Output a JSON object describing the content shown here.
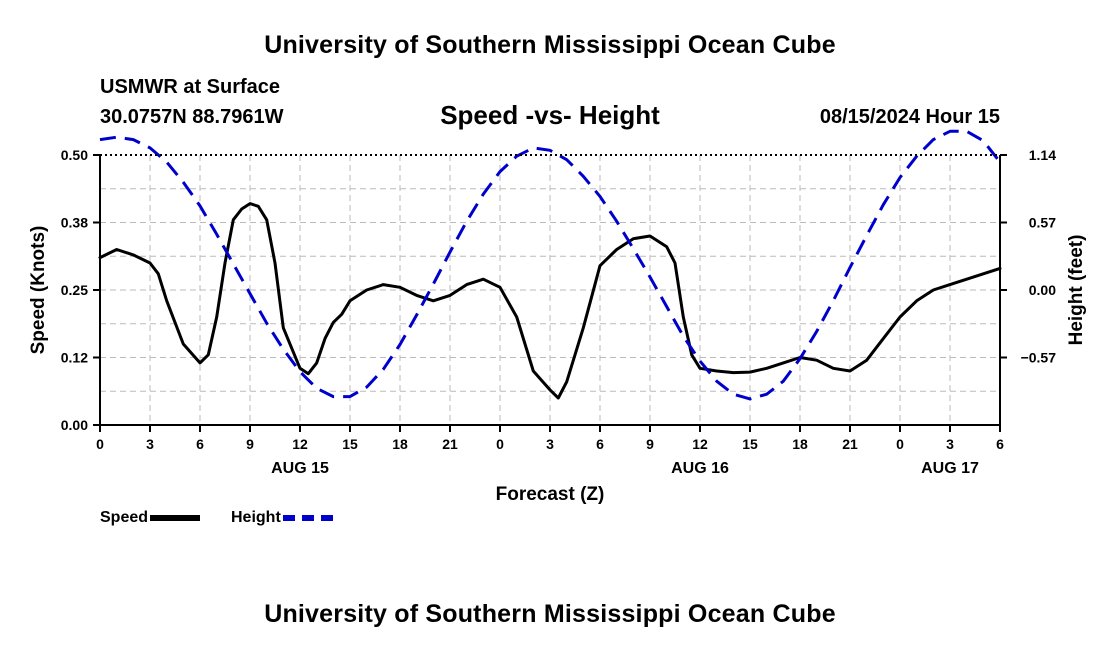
{
  "header": {
    "top_title": "University of Southern Mississippi Ocean Cube",
    "bottom_title": "University of Southern Mississippi Ocean Cube",
    "station": "USMWR at Surface",
    "coords": "30.0757N  88.7961W",
    "subtitle": "Speed -vs- Height",
    "datetime": "08/15/2024 Hour 15"
  },
  "legend": {
    "speed_label": "Speed",
    "height_label": "Height"
  },
  "colors": {
    "speed": "#000000",
    "height": "#0000cc",
    "grid": "#bbbbbb"
  },
  "chart_data": {
    "type": "line",
    "title": "Speed -vs- Height",
    "xlabel": "Forecast (Z)",
    "ylabel": "Speed (Knots)",
    "y2label": "Height (feet)",
    "xlim": [
      0,
      54
    ],
    "ylim": [
      0,
      0.5
    ],
    "y2lim": [
      -1.14,
      1.14
    ],
    "x_ticks": [
      0,
      3,
      6,
      9,
      12,
      15,
      18,
      21,
      24,
      27,
      30,
      33,
      36,
      39,
      42,
      45,
      48,
      51,
      54
    ],
    "x_tick_labels": [
      "0",
      "3",
      "6",
      "9",
      "12",
      "15",
      "18",
      "21",
      "0",
      "3",
      "6",
      "9",
      "12",
      "15",
      "18",
      "21",
      "0",
      "3",
      "6"
    ],
    "date_labels": [
      {
        "x": 12,
        "label": "AUG 15"
      },
      {
        "x": 36,
        "label": "AUG 16"
      },
      {
        "x": 51,
        "label": "AUG 17"
      }
    ],
    "y_ticks": [
      0,
      0.125,
      0.25,
      0.375,
      0.5
    ],
    "y_tick_labels": [
      "0.00",
      "0.12",
      "0.25",
      "0.38",
      "0.50"
    ],
    "y2_ticks": [
      -0.57,
      0,
      0.57,
      1.14
    ],
    "y2_tick_labels": [
      "−0.57",
      "0.00",
      "0.57",
      "1.14"
    ],
    "legend_position": "bottom-left",
    "series": [
      {
        "name": "Speed",
        "axis": "left",
        "style": "solid",
        "x": [
          0,
          1,
          2,
          3,
          3.5,
          4,
          5,
          6,
          6.5,
          7,
          7.5,
          8,
          8.5,
          9,
          9.5,
          10,
          10.5,
          11,
          12,
          12.5,
          13,
          13.5,
          14,
          14.5,
          15,
          16,
          17,
          18,
          19,
          20,
          21,
          22,
          23,
          24,
          25,
          26,
          27,
          27.5,
          28,
          29,
          30,
          31,
          32,
          33,
          34,
          34.5,
          35,
          35.5,
          36,
          37,
          38,
          39,
          40,
          41,
          42,
          43,
          44,
          45,
          46,
          47,
          48,
          49,
          50,
          51,
          52,
          53,
          54
        ],
        "values": [
          0.31,
          0.325,
          0.315,
          0.3,
          0.28,
          0.23,
          0.15,
          0.115,
          0.13,
          0.2,
          0.3,
          0.38,
          0.4,
          0.41,
          0.405,
          0.38,
          0.3,
          0.18,
          0.105,
          0.095,
          0.115,
          0.16,
          0.19,
          0.205,
          0.23,
          0.25,
          0.26,
          0.255,
          0.24,
          0.23,
          0.24,
          0.26,
          0.27,
          0.255,
          0.2,
          0.1,
          0.065,
          0.05,
          0.08,
          0.18,
          0.295,
          0.325,
          0.345,
          0.35,
          0.33,
          0.3,
          0.2,
          0.13,
          0.105,
          0.1,
          0.097,
          0.098,
          0.105,
          0.115,
          0.125,
          0.12,
          0.105,
          0.1,
          0.12,
          0.16,
          0.2,
          0.23,
          0.25,
          0.26,
          0.27,
          0.28,
          0.29
        ]
      },
      {
        "name": "Height",
        "axis": "right",
        "style": "dashed",
        "x": [
          0,
          1,
          2,
          3,
          4,
          5,
          6,
          7,
          8,
          9,
          10,
          11,
          12,
          13,
          14,
          15,
          16,
          17,
          18,
          19,
          20,
          21,
          22,
          23,
          24,
          25,
          26,
          27,
          28,
          29,
          30,
          31,
          32,
          33,
          34,
          35,
          36,
          37,
          38,
          39,
          40,
          41,
          42,
          43,
          44,
          45,
          46,
          47,
          48,
          49,
          50,
          51,
          52,
          53,
          54
        ],
        "values": [
          1.27,
          1.29,
          1.27,
          1.2,
          1.08,
          0.91,
          0.71,
          0.47,
          0.22,
          -0.03,
          -0.28,
          -0.5,
          -0.69,
          -0.83,
          -0.9,
          -0.9,
          -0.82,
          -0.67,
          -0.46,
          -0.21,
          0.05,
          0.32,
          0.58,
          0.81,
          1.0,
          1.13,
          1.2,
          1.18,
          1.1,
          0.96,
          0.79,
          0.58,
          0.35,
          0.11,
          -0.14,
          -0.39,
          -0.6,
          -0.77,
          -0.88,
          -0.92,
          -0.88,
          -0.77,
          -0.58,
          -0.35,
          -0.09,
          0.19,
          0.46,
          0.72,
          0.95,
          1.13,
          1.27,
          1.34,
          1.34,
          1.26,
          1.08
        ]
      }
    ]
  }
}
